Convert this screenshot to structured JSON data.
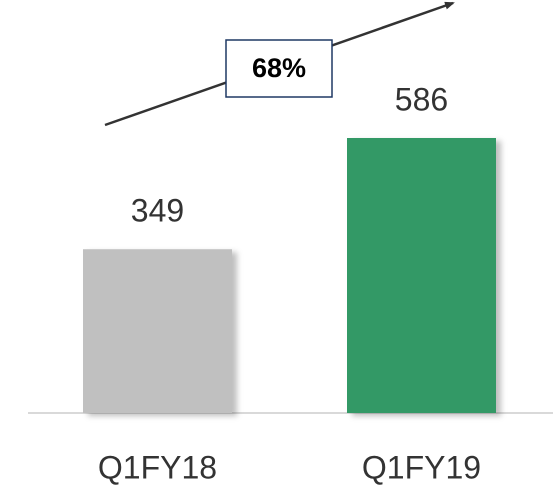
{
  "chart_data": {
    "type": "bar",
    "categories": [
      "Q1FY18",
      "Q1FY19"
    ],
    "values": [
      349,
      586
    ],
    "colors": [
      "#c0c0c0",
      "#339966"
    ],
    "annotation": "68%"
  }
}
